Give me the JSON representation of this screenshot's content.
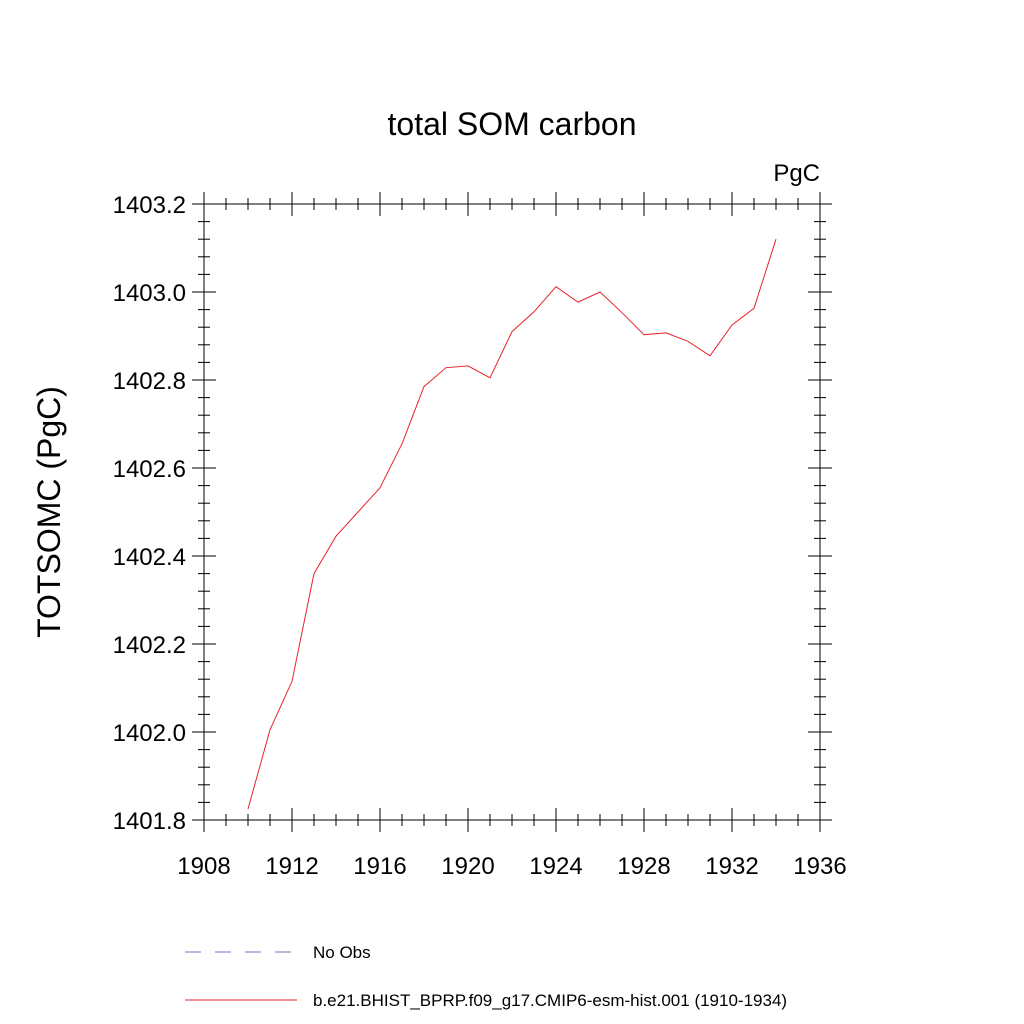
{
  "chart_data": {
    "type": "line",
    "title": "total SOM carbon",
    "units": "PgC",
    "ylabel": "TOTSOMC  (PgC)",
    "xlabel": "",
    "xlim": [
      1908,
      1936
    ],
    "ylim": [
      1401.8,
      1403.2
    ],
    "x_ticks": [
      "1908",
      "1912",
      "1916",
      "1920",
      "1924",
      "1928",
      "1932",
      "1936"
    ],
    "y_ticks": [
      "1401.8",
      "1402.0",
      "1402.2",
      "1402.4",
      "1402.6",
      "1402.8",
      "1403.0",
      "1403.2"
    ],
    "grid": false,
    "legend": {
      "placement": "bottom",
      "entries": [
        {
          "label": "No Obs",
          "color": "#6f6fbf",
          "style": "dashed"
        },
        {
          "label": "b.e21.BHIST_BPRP.f09_g17.CMIP6-esm-hist.001 (1910-1934)",
          "color": "#e8232a",
          "style": "solid"
        }
      ]
    },
    "series": [
      {
        "color": "#e8232a",
        "x": [
          1910,
          1911,
          1912,
          1913,
          1914,
          1915,
          1916,
          1917,
          1918,
          1919,
          1920,
          1921,
          1922,
          1923,
          1924,
          1925,
          1926,
          1927,
          1928,
          1929,
          1930,
          1931,
          1932,
          1933,
          1934
        ],
        "values": [
          1401.825,
          1402.005,
          1402.115,
          1402.36,
          1402.445,
          1402.5,
          1402.555,
          1402.655,
          1402.785,
          1402.828,
          1402.832,
          1402.805,
          1402.91,
          1402.955,
          1403.012,
          1402.977,
          1403.0,
          1402.953,
          1402.903,
          1402.907,
          1402.888,
          1402.855,
          1402.925,
          1402.963,
          1403.12
        ]
      }
    ]
  }
}
